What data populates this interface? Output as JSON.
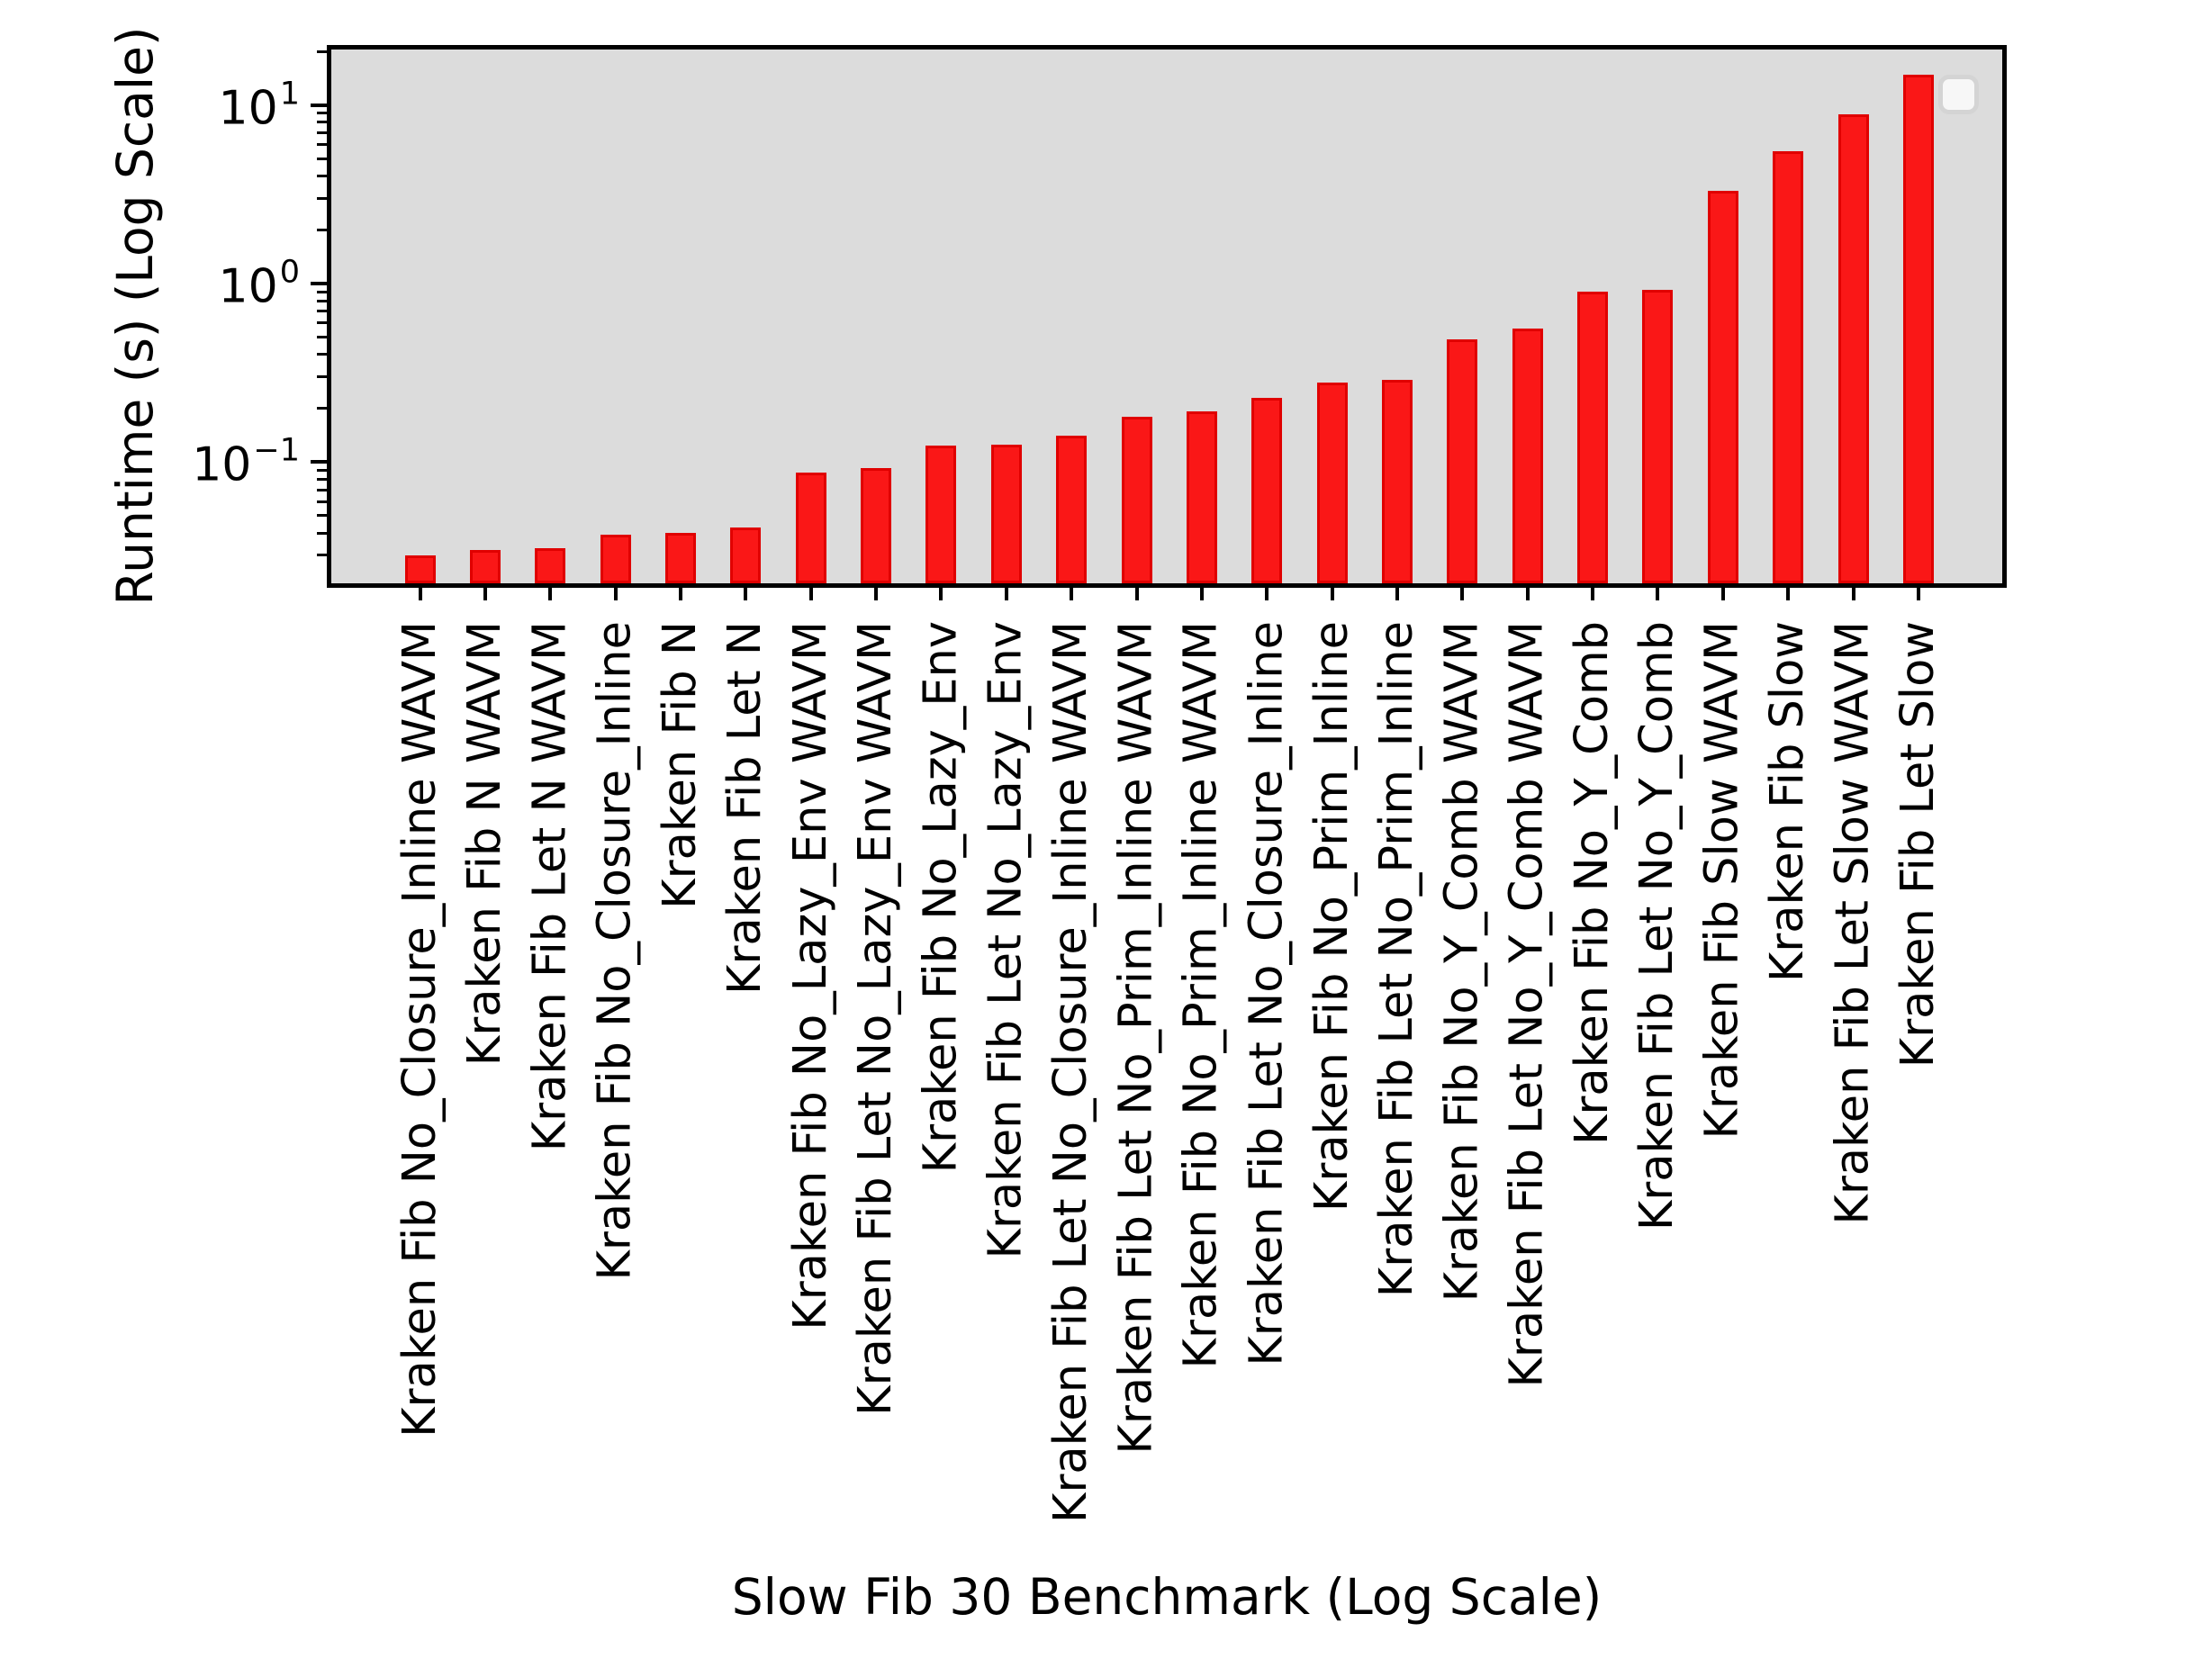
{
  "figure": {
    "background_color": "#ffffff",
    "plot_background_color": "#dcdcdc",
    "spine_color": "#000000"
  },
  "legend": {
    "visible": true,
    "entries": []
  },
  "chart_data": {
    "type": "bar",
    "title": "",
    "xlabel": "Slow Fib 30 Benchmark (Log Scale)",
    "ylabel": "Runtime (s) (Log Scale)",
    "yscale": "log",
    "ylim": [
      0.021,
      20.2
    ],
    "grid": false,
    "legend_position": "upper right",
    "bar_color": "#fa1717",
    "bar_edge_color": "#e00000",
    "y_tick_exponents": [
      1,
      0,
      -1
    ],
    "y_tick_values": [
      10,
      1,
      0.1
    ],
    "categories": [
      "Kraken Fib No_Closure_Inline WAVM",
      "Kraken Fib N WAVM",
      "Kraken Fib Let N WAVM",
      "Kraken Fib No_Closure_Inline",
      "Kraken Fib N",
      "Kraken Fib Let N",
      "Kraken Fib No_Lazy_Env WAVM",
      "Kraken Fib Let No_Lazy_Env WAVM",
      "Kraken Fib No_Lazy_Env",
      "Kraken Fib Let No_Lazy_Env",
      "Kraken Fib Let No_Closure_Inline WAVM",
      "Kraken Fib Let No_Prim_Inline WAVM",
      "Kraken Fib No_Prim_Inline WAVM",
      "Kraken Fib Let No_Closure_Inline",
      "Kraken Fib No_Prim_Inline",
      "Kraken Fib Let No_Prim_Inline",
      "Kraken Fib No_Y_Comb WAVM",
      "Kraken Fib Let No_Y_Comb WAVM",
      "Kraken Fib No_Y_Comb",
      "Kraken Fib Let No_Y_Comb",
      "Kraken Fib Slow WAVM",
      "Kraken Fib Slow",
      "Kraken Fib Let Slow WAVM",
      "Kraken Fib Let Slow"
    ],
    "values": [
      0.03,
      0.032,
      0.033,
      0.039,
      0.04,
      0.043,
      0.087,
      0.093,
      0.123,
      0.125,
      0.141,
      0.179,
      0.192,
      0.23,
      0.279,
      0.29,
      0.489,
      0.56,
      0.904,
      0.922,
      3.3,
      5.5,
      8.85,
      14.8
    ]
  }
}
